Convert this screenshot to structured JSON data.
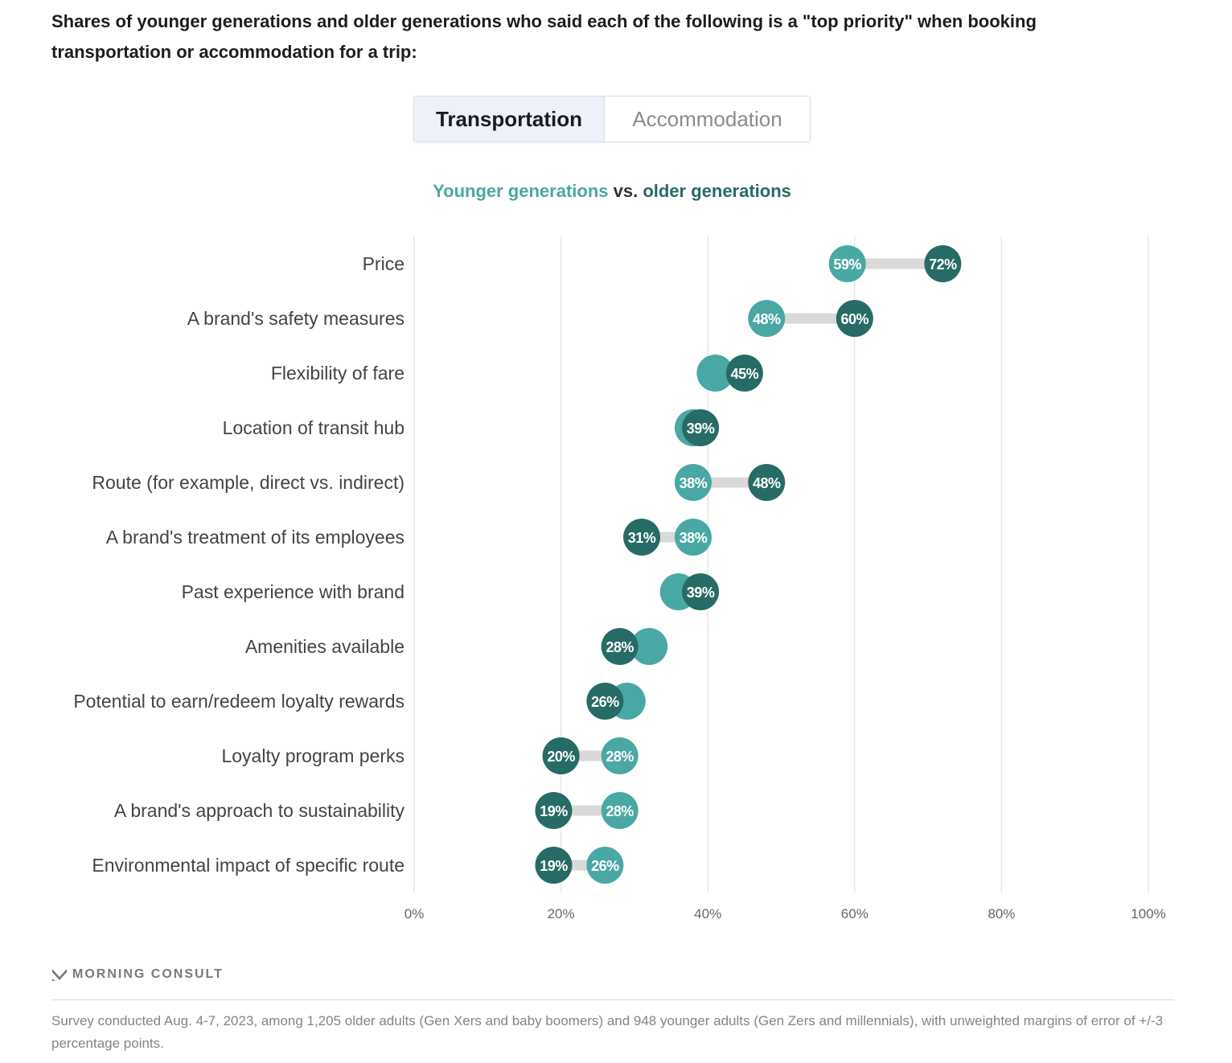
{
  "title": "Shares of younger generations and older generations who said each of the following is a \"top priority\" when booking transportation or accommodation for a trip:",
  "tabs": [
    {
      "label": "Transportation",
      "active": true
    },
    {
      "label": "Accommodation",
      "active": false
    }
  ],
  "legend": {
    "younger": "Younger generations",
    "vs": " vs. ",
    "older": "older generations"
  },
  "colors": {
    "younger": "#4aa8a4",
    "older": "#276b66",
    "connector": "#d9d9d9",
    "grid": "#e6e6e6"
  },
  "chart_data": {
    "type": "dumbbell",
    "title": "Younger generations vs. older generations",
    "xlabel": "",
    "ylabel": "",
    "xlim": [
      0,
      100
    ],
    "x_ticks": [
      "0%",
      "20%",
      "40%",
      "60%",
      "80%",
      "100%"
    ],
    "x_tick_values": [
      0,
      20,
      40,
      60,
      80,
      100
    ],
    "grid": true,
    "categories": [
      "Price",
      "A brand's safety measures",
      "Flexibility of fare",
      "Location of transit hub",
      "Route (for example, direct vs. indirect)",
      "A brand's treatment of its employees",
      "Past experience with brand",
      "Amenities available",
      "Potential to earn/redeem loyalty rewards",
      "Loyalty program perks",
      "A brand's approach to sustainability",
      "Environmental impact of specific route"
    ],
    "series": [
      {
        "name": "Younger generations",
        "values": [
          59,
          48,
          41,
          38,
          38,
          38,
          36,
          32,
          29,
          28,
          28,
          26
        ],
        "labels_shown": [
          true,
          true,
          false,
          false,
          true,
          true,
          false,
          false,
          false,
          true,
          true,
          true
        ]
      },
      {
        "name": "Older generations",
        "values": [
          72,
          60,
          45,
          39,
          48,
          31,
          39,
          28,
          26,
          20,
          19,
          19
        ],
        "labels_shown": [
          true,
          true,
          true,
          true,
          true,
          true,
          true,
          true,
          true,
          true,
          true,
          true
        ]
      }
    ]
  },
  "footer": {
    "brand": "MORNING CONSULT",
    "note": "Survey conducted Aug. 4-7, 2023, among 1,205 older adults (Gen Xers and baby boomers) and 948 younger adults (Gen Zers and millennials), with unweighted margins of error of +/-3 percentage points."
  }
}
